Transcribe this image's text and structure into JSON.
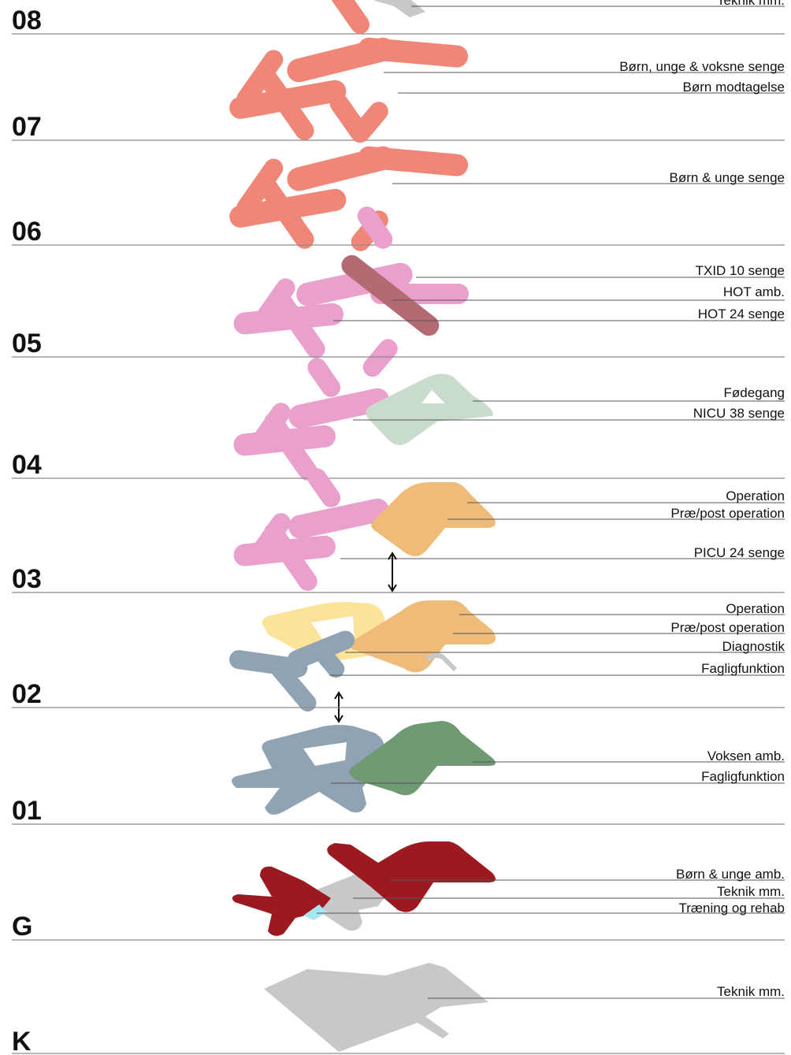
{
  "colors": {
    "coral": "#ef8677",
    "pink": "#e9a0cc",
    "mauve": "#b46a72",
    "sage": "#c9dccb",
    "orange": "#efbb78",
    "yellow": "#fbe49a",
    "blue_grey": "#8fa3b5",
    "green": "#6f9a72",
    "dark_red": "#9c1a1f",
    "grey": "#c8c8c8",
    "cyan": "#a8e6f3"
  },
  "floors": [
    {
      "label": "08",
      "callouts": [
        "Teknik mm."
      ]
    },
    {
      "label": "07",
      "callouts": [
        "Børn, unge & voksne senge",
        "Børn modtagelse"
      ]
    },
    {
      "label": "06",
      "callouts": [
        "Børn & unge senge"
      ]
    },
    {
      "label": "05",
      "callouts": [
        "TXID 10 senge",
        "HOT amb.",
        "HOT 24 senge"
      ]
    },
    {
      "label": "04",
      "callouts": [
        "Fødegang",
        "NICU 38 senge"
      ]
    },
    {
      "label": "03",
      "callouts": [
        "Operation",
        "Præ/post operation",
        "PICU 24 senge"
      ]
    },
    {
      "label": "02",
      "callouts": [
        "Operation",
        "Præ/post operation",
        "Diagnostik",
        "Fagligfunktion"
      ]
    },
    {
      "label": "01",
      "callouts": [
        "Voksen amb.",
        "Fagligfunktion"
      ]
    },
    {
      "label": "G",
      "callouts": [
        "Børn & unge amb.",
        "Teknik mm.",
        "Træning og rehab"
      ]
    },
    {
      "label": "K",
      "callouts": [
        "Teknik mm."
      ]
    }
  ]
}
